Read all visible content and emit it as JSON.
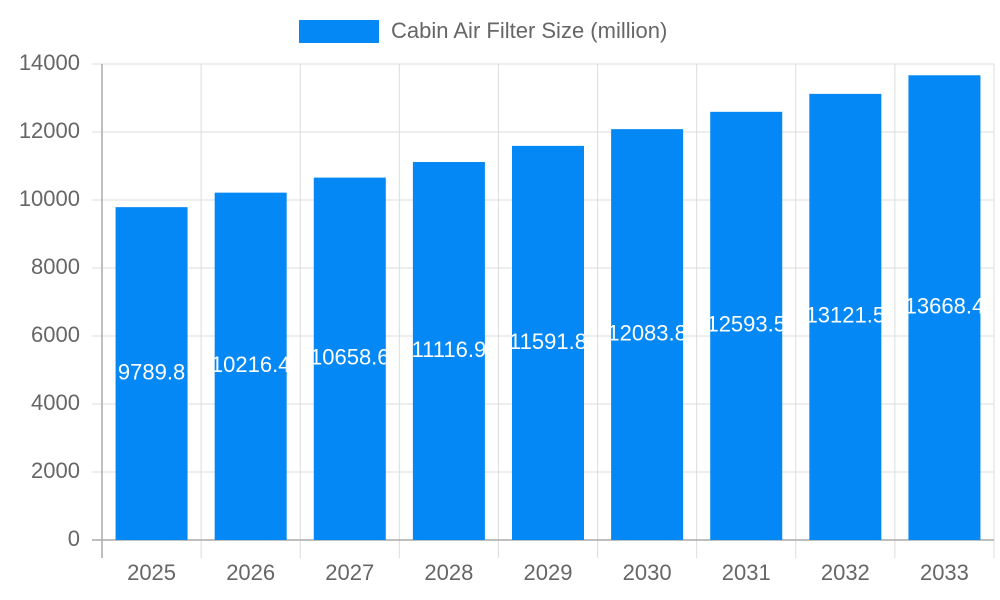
{
  "chart_data": {
    "type": "bar",
    "legend": "Cabin Air Filter Size (million)",
    "categories": [
      "2025",
      "2026",
      "2027",
      "2028",
      "2029",
      "2030",
      "2031",
      "2032",
      "2033"
    ],
    "values": [
      9789.8,
      10216.4,
      10658.6,
      11116.9,
      11591.8,
      12083.8,
      12593.5,
      13121.5,
      13668.4
    ],
    "color": "#0388f5",
    "ylim": [
      0,
      14000
    ],
    "yticks": [
      0,
      2000,
      4000,
      6000,
      8000,
      10000,
      12000,
      14000
    ],
    "grid": true
  }
}
